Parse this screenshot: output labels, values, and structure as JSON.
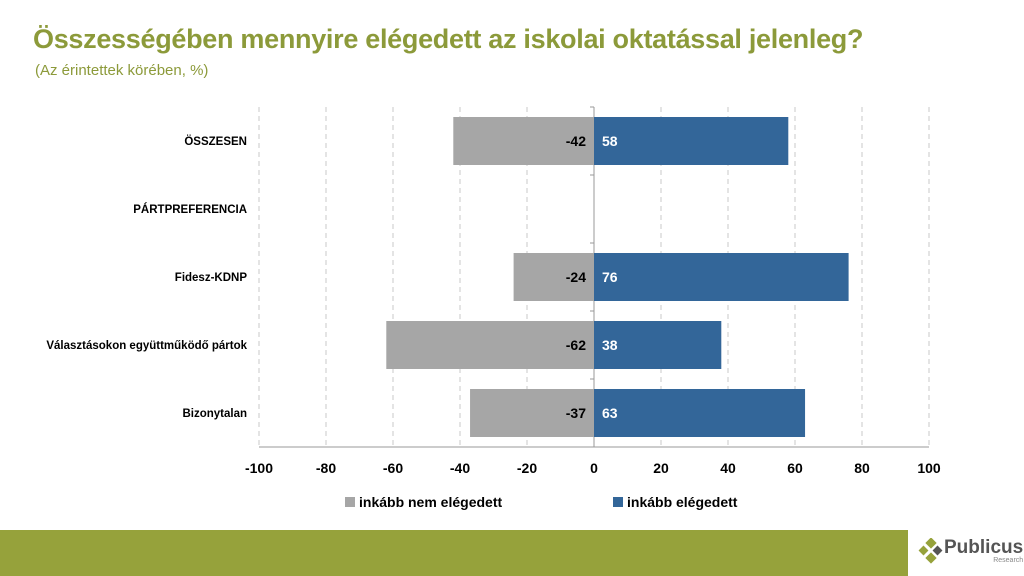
{
  "title": "Összességében mennyire elégedett az iskolai oktatással jelenleg?",
  "subtitle": "(Az érintettek körében, %)",
  "chart_data": {
    "type": "bar",
    "orientation": "horizontal-diverging",
    "categories": [
      "ÖSSZESEN",
      "PÁRTPREFERENCIA",
      "Fidesz-KDNP",
      "Választásokon együttműködő pártok",
      "Bizonytalan"
    ],
    "series": [
      {
        "name": "inkább nem elégedett",
        "color": "#a6a6a6",
        "values": [
          -42,
          null,
          -24,
          -62,
          -37
        ]
      },
      {
        "name": "inkább elégedett",
        "color": "#336699",
        "values": [
          58,
          null,
          76,
          38,
          63
        ]
      }
    ],
    "xlim": [
      -100,
      100
    ],
    "xticks": [
      -100,
      -80,
      -60,
      -40,
      -20,
      0,
      20,
      40,
      60,
      80,
      100
    ],
    "grid": "vertical dashed",
    "legend": "bottom"
  },
  "logo": {
    "name": "Publicus",
    "sub": "Research"
  }
}
